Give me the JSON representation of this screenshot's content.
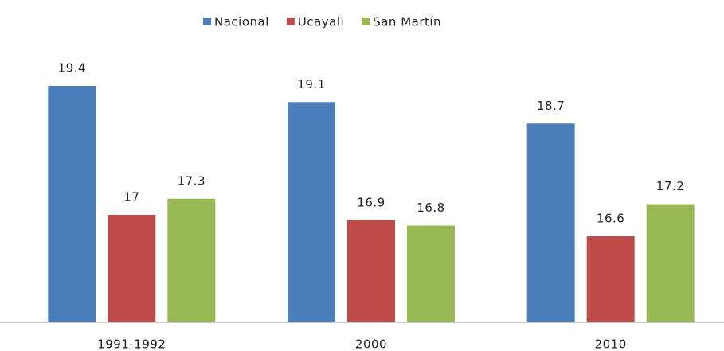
{
  "chart_data": {
    "type": "bar",
    "categories": [
      "1991-1992",
      "2000",
      "2010"
    ],
    "series": [
      {
        "name": "Nacional",
        "color": "#4a7ebb",
        "values": [
          19.4,
          19.1,
          18.7
        ]
      },
      {
        "name": "Ucayali",
        "color": "#be4b48",
        "values": [
          17,
          16.9,
          16.6
        ]
      },
      {
        "name": "San Martín",
        "color": "#98b954",
        "values": [
          17.3,
          16.8,
          17.2
        ]
      }
    ],
    "ylim": [
      15,
      20
    ],
    "legend": "top"
  }
}
